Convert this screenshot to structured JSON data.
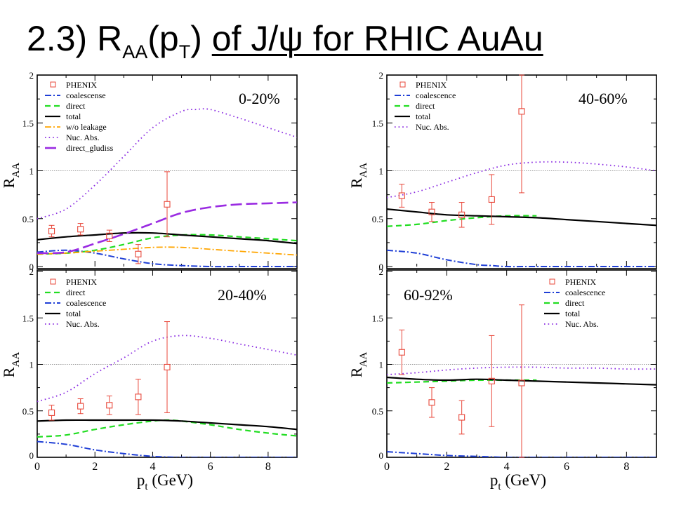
{
  "slide": {
    "number": "2.3)",
    "r": "R",
    "r_sub": "AA",
    "paren_open": "(p",
    "pt_sub": "T",
    "paren_close": ")",
    "underlined": "of J/ψ for RHIC AuAu"
  },
  "colors": {
    "phenix": "#e8473a",
    "coalescence": "#1f3fd6",
    "direct": "#22dd22",
    "total": "#000000",
    "wo_leakage": "#ffa500",
    "nuc_abs": "#8a2be2",
    "direct_gludiss": "#9a2be2"
  },
  "shared_axes": {
    "xlabel_main": "p",
    "xlabel_sub": "t",
    "xlabel_rest": " (GeV)",
    "ylabel_main": "R",
    "ylabel_sub": "AA",
    "xlim": [
      0,
      9
    ],
    "ylim": [
      0,
      2
    ],
    "xticks": [
      "0",
      "2",
      "4",
      "6",
      "8"
    ],
    "yticks": [
      "0",
      "0.5",
      "1",
      "1.5",
      "2"
    ],
    "reference_line": 1
  },
  "chart_data": [
    {
      "type": "line",
      "centrality": "0-20%",
      "legend_position": "top-left",
      "legend": [
        "PHENIX",
        "coalescense",
        "direct",
        "total",
        "w/o leakage",
        "Nuc. Abs.",
        "direct_gludiss"
      ],
      "series": [
        {
          "name": "coalescense",
          "key": "coalescence",
          "x": [
            0,
            1,
            2,
            3,
            4,
            5,
            6,
            7,
            8,
            9
          ],
          "y": [
            0.15,
            0.17,
            0.14,
            0.08,
            0.03,
            0.01,
            0.0,
            0.0,
            0.0,
            0.0
          ]
        },
        {
          "name": "direct",
          "key": "direct",
          "x": [
            0,
            1,
            2,
            3,
            4,
            5,
            6,
            7,
            8,
            9
          ],
          "y": [
            0.13,
            0.14,
            0.17,
            0.23,
            0.3,
            0.33,
            0.33,
            0.31,
            0.29,
            0.27
          ]
        },
        {
          "name": "total",
          "key": "total",
          "x": [
            0,
            1,
            2,
            3,
            4,
            5,
            6,
            7,
            8,
            9
          ],
          "y": [
            0.28,
            0.31,
            0.33,
            0.35,
            0.35,
            0.33,
            0.31,
            0.29,
            0.27,
            0.24
          ]
        },
        {
          "name": "w/o leakage",
          "key": "wo_leakage",
          "x": [
            0,
            1,
            2,
            3,
            4,
            5,
            6,
            7,
            8,
            9
          ],
          "y": [
            0.13,
            0.14,
            0.16,
            0.18,
            0.2,
            0.2,
            0.18,
            0.16,
            0.14,
            0.12
          ]
        },
        {
          "name": "Nuc. Abs.",
          "key": "nuc_abs",
          "x": [
            0,
            1,
            2,
            3,
            4,
            5,
            5.5,
            6,
            7,
            8,
            9
          ],
          "y": [
            0.5,
            0.6,
            0.85,
            1.15,
            1.45,
            1.62,
            1.64,
            1.64,
            1.55,
            1.45,
            1.35
          ]
        },
        {
          "name": "direct_gludiss",
          "key": "direct_gludiss",
          "x": [
            0,
            1,
            2,
            3,
            4,
            5,
            6,
            7,
            8,
            9
          ],
          "y": [
            0.14,
            0.15,
            0.24,
            0.34,
            0.45,
            0.56,
            0.62,
            0.65,
            0.66,
            0.67
          ]
        }
      ],
      "points": {
        "name": "PHENIX",
        "x": [
          0.5,
          1.5,
          2.5,
          3.5,
          4.5
        ],
        "y": [
          0.37,
          0.39,
          0.32,
          0.13,
          0.65
        ],
        "err": [
          0.06,
          0.06,
          0.06,
          0.1,
          0.34
        ]
      }
    },
    {
      "type": "line",
      "centrality": "40-60%",
      "legend_position": "top-left",
      "legend": [
        "PHENIX",
        "coalescence",
        "direct",
        "total",
        "Nuc. Abs."
      ],
      "series": [
        {
          "name": "coalescence",
          "key": "coalescence",
          "x": [
            0,
            1,
            2,
            3,
            3.5,
            4,
            5,
            6,
            7,
            8,
            9
          ],
          "y": [
            0.17,
            0.14,
            0.07,
            0.02,
            0.01,
            0.0,
            0.0,
            0.0,
            0.0,
            0.0,
            0.0
          ]
        },
        {
          "name": "direct",
          "key": "direct",
          "x": [
            0,
            1,
            2,
            3,
            4,
            5
          ],
          "y": [
            0.42,
            0.44,
            0.48,
            0.51,
            0.53,
            0.53
          ]
        },
        {
          "name": "total",
          "key": "total",
          "x": [
            0,
            1,
            2,
            3,
            4,
            5,
            6,
            7,
            8,
            9
          ],
          "y": [
            0.6,
            0.57,
            0.54,
            0.53,
            0.52,
            0.51,
            0.49,
            0.47,
            0.45,
            0.43
          ]
        },
        {
          "name": "Nuc. Abs.",
          "key": "nuc_abs",
          "x": [
            0,
            1,
            2,
            3,
            4,
            5,
            6,
            7,
            8,
            9
          ],
          "y": [
            0.72,
            0.78,
            0.88,
            0.98,
            1.06,
            1.09,
            1.09,
            1.07,
            1.04,
            1.0
          ]
        }
      ],
      "points": {
        "name": "PHENIX",
        "x": [
          0.5,
          1.5,
          2.5,
          3.5,
          4.5
        ],
        "y": [
          0.74,
          0.57,
          0.54,
          0.7,
          1.62
        ],
        "err": [
          0.12,
          0.1,
          0.13,
          0.26,
          0.85
        ]
      }
    },
    {
      "type": "line",
      "centrality": "20-40%",
      "legend_position": "top-left",
      "legend": [
        "PHENIX",
        "direct",
        "coalescence",
        "total",
        "Nuc. Abs."
      ],
      "series": [
        {
          "name": "direct",
          "key": "direct",
          "x": [
            0,
            1,
            2,
            3,
            4,
            4.5,
            5,
            6,
            7,
            8,
            9
          ],
          "y": [
            0.22,
            0.24,
            0.3,
            0.35,
            0.39,
            0.4,
            0.39,
            0.35,
            0.3,
            0.26,
            0.23
          ]
        },
        {
          "name": "coalescence",
          "key": "coalescence",
          "x": [
            0,
            1,
            2,
            3,
            4,
            5,
            6,
            7,
            8,
            9
          ],
          "y": [
            0.17,
            0.14,
            0.08,
            0.04,
            0.01,
            0.0,
            0.0,
            0.0,
            0.0,
            0.0
          ]
        },
        {
          "name": "total",
          "key": "total",
          "x": [
            0,
            1,
            2,
            3,
            4,
            5,
            6,
            7,
            8,
            9
          ],
          "y": [
            0.39,
            0.4,
            0.4,
            0.4,
            0.4,
            0.39,
            0.37,
            0.35,
            0.33,
            0.3
          ]
        },
        {
          "name": "Nuc. Abs.",
          "key": "nuc_abs",
          "x": [
            0,
            1,
            2,
            3,
            4,
            5,
            6,
            7,
            8,
            9
          ],
          "y": [
            0.6,
            0.7,
            0.9,
            1.07,
            1.25,
            1.31,
            1.28,
            1.22,
            1.16,
            1.1
          ]
        }
      ],
      "points": {
        "name": "PHENIX",
        "x": [
          0.5,
          1.5,
          2.5,
          3.5,
          4.5
        ],
        "y": [
          0.48,
          0.55,
          0.56,
          0.65,
          0.97
        ],
        "err": [
          0.08,
          0.08,
          0.1,
          0.19,
          0.49
        ]
      }
    },
    {
      "type": "line",
      "centrality": "60-92%",
      "legend_position": "top-right",
      "legend": [
        "PHENIX",
        "coalescence",
        "direct",
        "total",
        "Nuc. Abs."
      ],
      "series": [
        {
          "name": "coalescence",
          "key": "coalescence",
          "x": [
            0,
            1,
            2,
            3,
            4,
            5,
            6,
            7,
            8,
            9
          ],
          "y": [
            0.06,
            0.04,
            0.02,
            0.01,
            0.0,
            0.0,
            0.0,
            0.0,
            0.0,
            0.0
          ]
        },
        {
          "name": "direct",
          "key": "direct",
          "x": [
            0,
            1,
            2,
            3,
            4,
            5
          ],
          "y": [
            0.8,
            0.81,
            0.82,
            0.83,
            0.83,
            0.83
          ]
        },
        {
          "name": "total",
          "key": "total",
          "x": [
            0,
            1,
            2,
            3,
            4,
            5,
            6,
            7,
            8,
            9
          ],
          "y": [
            0.86,
            0.84,
            0.83,
            0.84,
            0.83,
            0.82,
            0.81,
            0.8,
            0.79,
            0.78
          ]
        },
        {
          "name": "Nuc. Abs.",
          "key": "nuc_abs",
          "x": [
            0,
            1,
            2,
            3,
            4,
            5,
            6,
            7,
            8,
            9
          ],
          "y": [
            0.89,
            0.91,
            0.94,
            0.96,
            0.97,
            0.97,
            0.96,
            0.96,
            0.95,
            0.95
          ]
        }
      ],
      "points": {
        "name": "PHENIX",
        "x": [
          0.5,
          1.5,
          2.5,
          3.5,
          4.5
        ],
        "y": [
          1.13,
          0.59,
          0.43,
          0.82,
          0.8
        ],
        "err": [
          0.24,
          0.16,
          0.18,
          0.49,
          0.84
        ]
      }
    }
  ]
}
